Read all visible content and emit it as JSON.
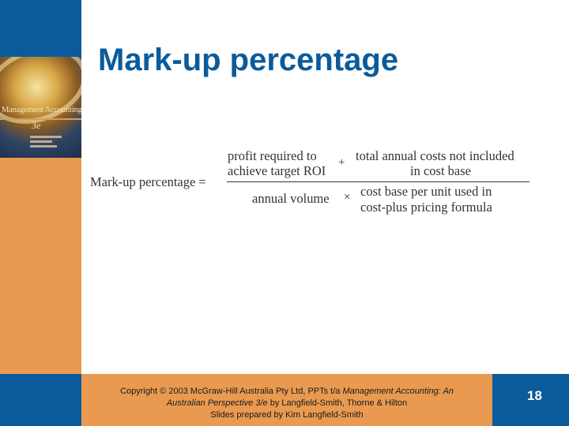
{
  "title": "Mark-up percentage",
  "book_cover": {
    "title": "Management Accounting",
    "edition": "3e"
  },
  "formula": {
    "lhs": "Mark-up percentage =",
    "numerator_left_line1": "profit required to",
    "numerator_left_line2": "achieve target ROI",
    "plus": "+",
    "numerator_right_line1": "total annual costs not included",
    "numerator_right_line2": "in cost base",
    "denominator_left": "annual volume",
    "times": "×",
    "denominator_right_line1": "cost base per unit used in",
    "denominator_right_line2": "cost-plus pricing formula"
  },
  "footer": {
    "line1_prefix": "Copyright © 2003 McGraw-Hill Australia Pty Ltd, PPTs t/a ",
    "line1_italic": "Management Accounting: An",
    "line2_italic": "Australian Perspective 3/e",
    "line2_suffix": " by Langfield-Smith, Thorne & Hilton",
    "line3": "Slides prepared by Kim Langfield-Smith"
  },
  "page_number": "18",
  "colors": {
    "accent_blue": "#0a5b9c",
    "accent_orange": "#e99a50"
  }
}
